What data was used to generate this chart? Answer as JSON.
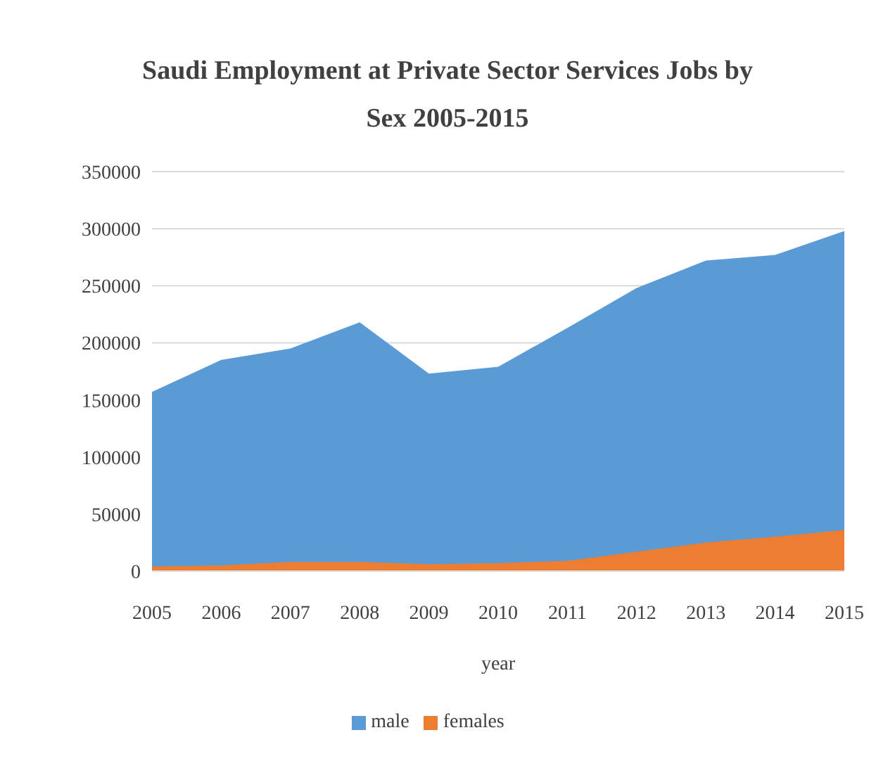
{
  "chart_data": {
    "type": "area",
    "title": "Saudi  Employment at Private Sector Services Jobs by Sex 2005-2015",
    "xlabel": "year",
    "categories": [
      "2005",
      "2006",
      "2007",
      "2008",
      "2009",
      "2010",
      "2011",
      "2012",
      "2013",
      "2014",
      "2015"
    ],
    "series": [
      {
        "name": "male",
        "color": "#5b9bd5",
        "values": [
          157000,
          185000,
          195000,
          218000,
          173000,
          179000,
          213000,
          248000,
          272000,
          277000,
          298000
        ]
      },
      {
        "name": "females",
        "color": "#ed7d31",
        "values": [
          4000,
          5000,
          8000,
          8000,
          6000,
          7000,
          9000,
          17000,
          25000,
          30000,
          36000
        ]
      }
    ],
    "ylim": [
      0,
      350000
    ],
    "yticks": [
      0,
      50000,
      100000,
      150000,
      200000,
      250000,
      300000,
      350000
    ],
    "grid": "y",
    "legend": "bottom"
  }
}
